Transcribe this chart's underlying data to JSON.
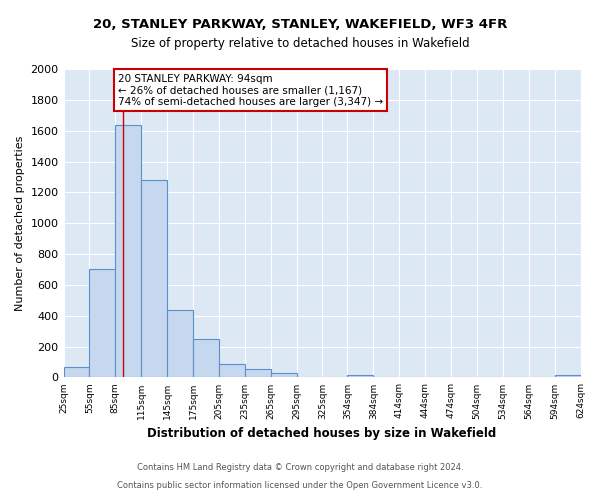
{
  "title": "20, STANLEY PARKWAY, STANLEY, WAKEFIELD, WF3 4FR",
  "subtitle": "Size of property relative to detached houses in Wakefield",
  "xlabel": "Distribution of detached houses by size in Wakefield",
  "ylabel": "Number of detached properties",
  "bar_left_edges": [
    25,
    55,
    85,
    115,
    145,
    175,
    205,
    235,
    265,
    295,
    325,
    354,
    384,
    414,
    444,
    474,
    504,
    534,
    564,
    594
  ],
  "bar_heights": [
    70,
    700,
    1640,
    1280,
    435,
    250,
    90,
    55,
    30,
    0,
    0,
    15,
    0,
    0,
    0,
    0,
    0,
    0,
    0,
    15
  ],
  "bar_widths": [
    30,
    30,
    30,
    30,
    30,
    30,
    30,
    30,
    30,
    29,
    30,
    30,
    30,
    30,
    30,
    30,
    30,
    30,
    30,
    30
  ],
  "bar_color": "#c5d8f0",
  "bar_edge_color": "#5b8fc9",
  "bar_edge_width": 0.8,
  "ylim": [
    0,
    2000
  ],
  "xlim": [
    25,
    624
  ],
  "red_line_x": 94,
  "annotation_title": "20 STANLEY PARKWAY: 94sqm",
  "annotation_line1": "← 26% of detached houses are smaller (1,167)",
  "annotation_line2": "74% of semi-detached houses are larger (3,347) →",
  "annotation_box_color": "#ffffff",
  "annotation_border_color": "#cc0000",
  "x_tick_labels": [
    "25sqm",
    "55sqm",
    "85sqm",
    "115sqm",
    "145sqm",
    "175sqm",
    "205sqm",
    "235sqm",
    "265sqm",
    "295sqm",
    "325sqm",
    "354sqm",
    "384sqm",
    "414sqm",
    "444sqm",
    "474sqm",
    "504sqm",
    "534sqm",
    "564sqm",
    "594sqm",
    "624sqm"
  ],
  "x_tick_positions": [
    25,
    55,
    85,
    115,
    145,
    175,
    205,
    235,
    265,
    295,
    325,
    354,
    384,
    414,
    444,
    474,
    504,
    534,
    564,
    594,
    624
  ],
  "plot_bg_color": "#dde8f5",
  "figure_bg_color": "#ffffff",
  "grid_color": "#ffffff",
  "footer_line1": "Contains HM Land Registry data © Crown copyright and database right 2024.",
  "footer_line2": "Contains public sector information licensed under the Open Government Licence v3.0."
}
